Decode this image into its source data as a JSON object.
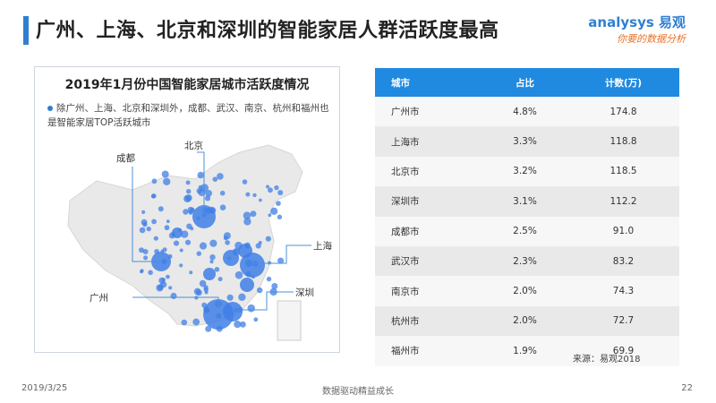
{
  "page": {
    "title": "广州、上海、北京和深圳的智能家居人群活跃度最高",
    "logo_brand": "analysys 易观",
    "logo_slogan": "你要的数据分析",
    "source": "来源：易观2018",
    "footer_date": "2019/3/25",
    "footer_center": "数据驱动精益成长",
    "footer_page": "22"
  },
  "map": {
    "title": "2019年1月份中国智能家居城市活跃度情况",
    "note": "除广州、上海、北京和深圳外，成都、武汉、南京、杭州和福州也是智能家居TOP活跃城市",
    "labels": {
      "beijing": "北京",
      "chengdu": "成都",
      "shanghai": "上海",
      "guangzhou": "广州",
      "shenzhen": "深圳"
    }
  },
  "colors": {
    "accent": "#2f7fd0",
    "header": "#1f8ae0",
    "bubble": "#3f7fe6"
  },
  "chart_data": {
    "type": "table",
    "columns": [
      "城市",
      "占比",
      "计数(万)"
    ],
    "rows": [
      [
        "广州市",
        "4.8%",
        "174.8"
      ],
      [
        "上海市",
        "3.3%",
        "118.8"
      ],
      [
        "北京市",
        "3.2%",
        "118.5"
      ],
      [
        "深圳市",
        "3.1%",
        "112.2"
      ],
      [
        "成都市",
        "2.5%",
        "91.0"
      ],
      [
        "武汉市",
        "2.3%",
        "83.2"
      ],
      [
        "南京市",
        "2.0%",
        "74.3"
      ],
      [
        "杭州市",
        "2.0%",
        "72.7"
      ],
      [
        "福州市",
        "1.9%",
        "69.9"
      ]
    ]
  }
}
